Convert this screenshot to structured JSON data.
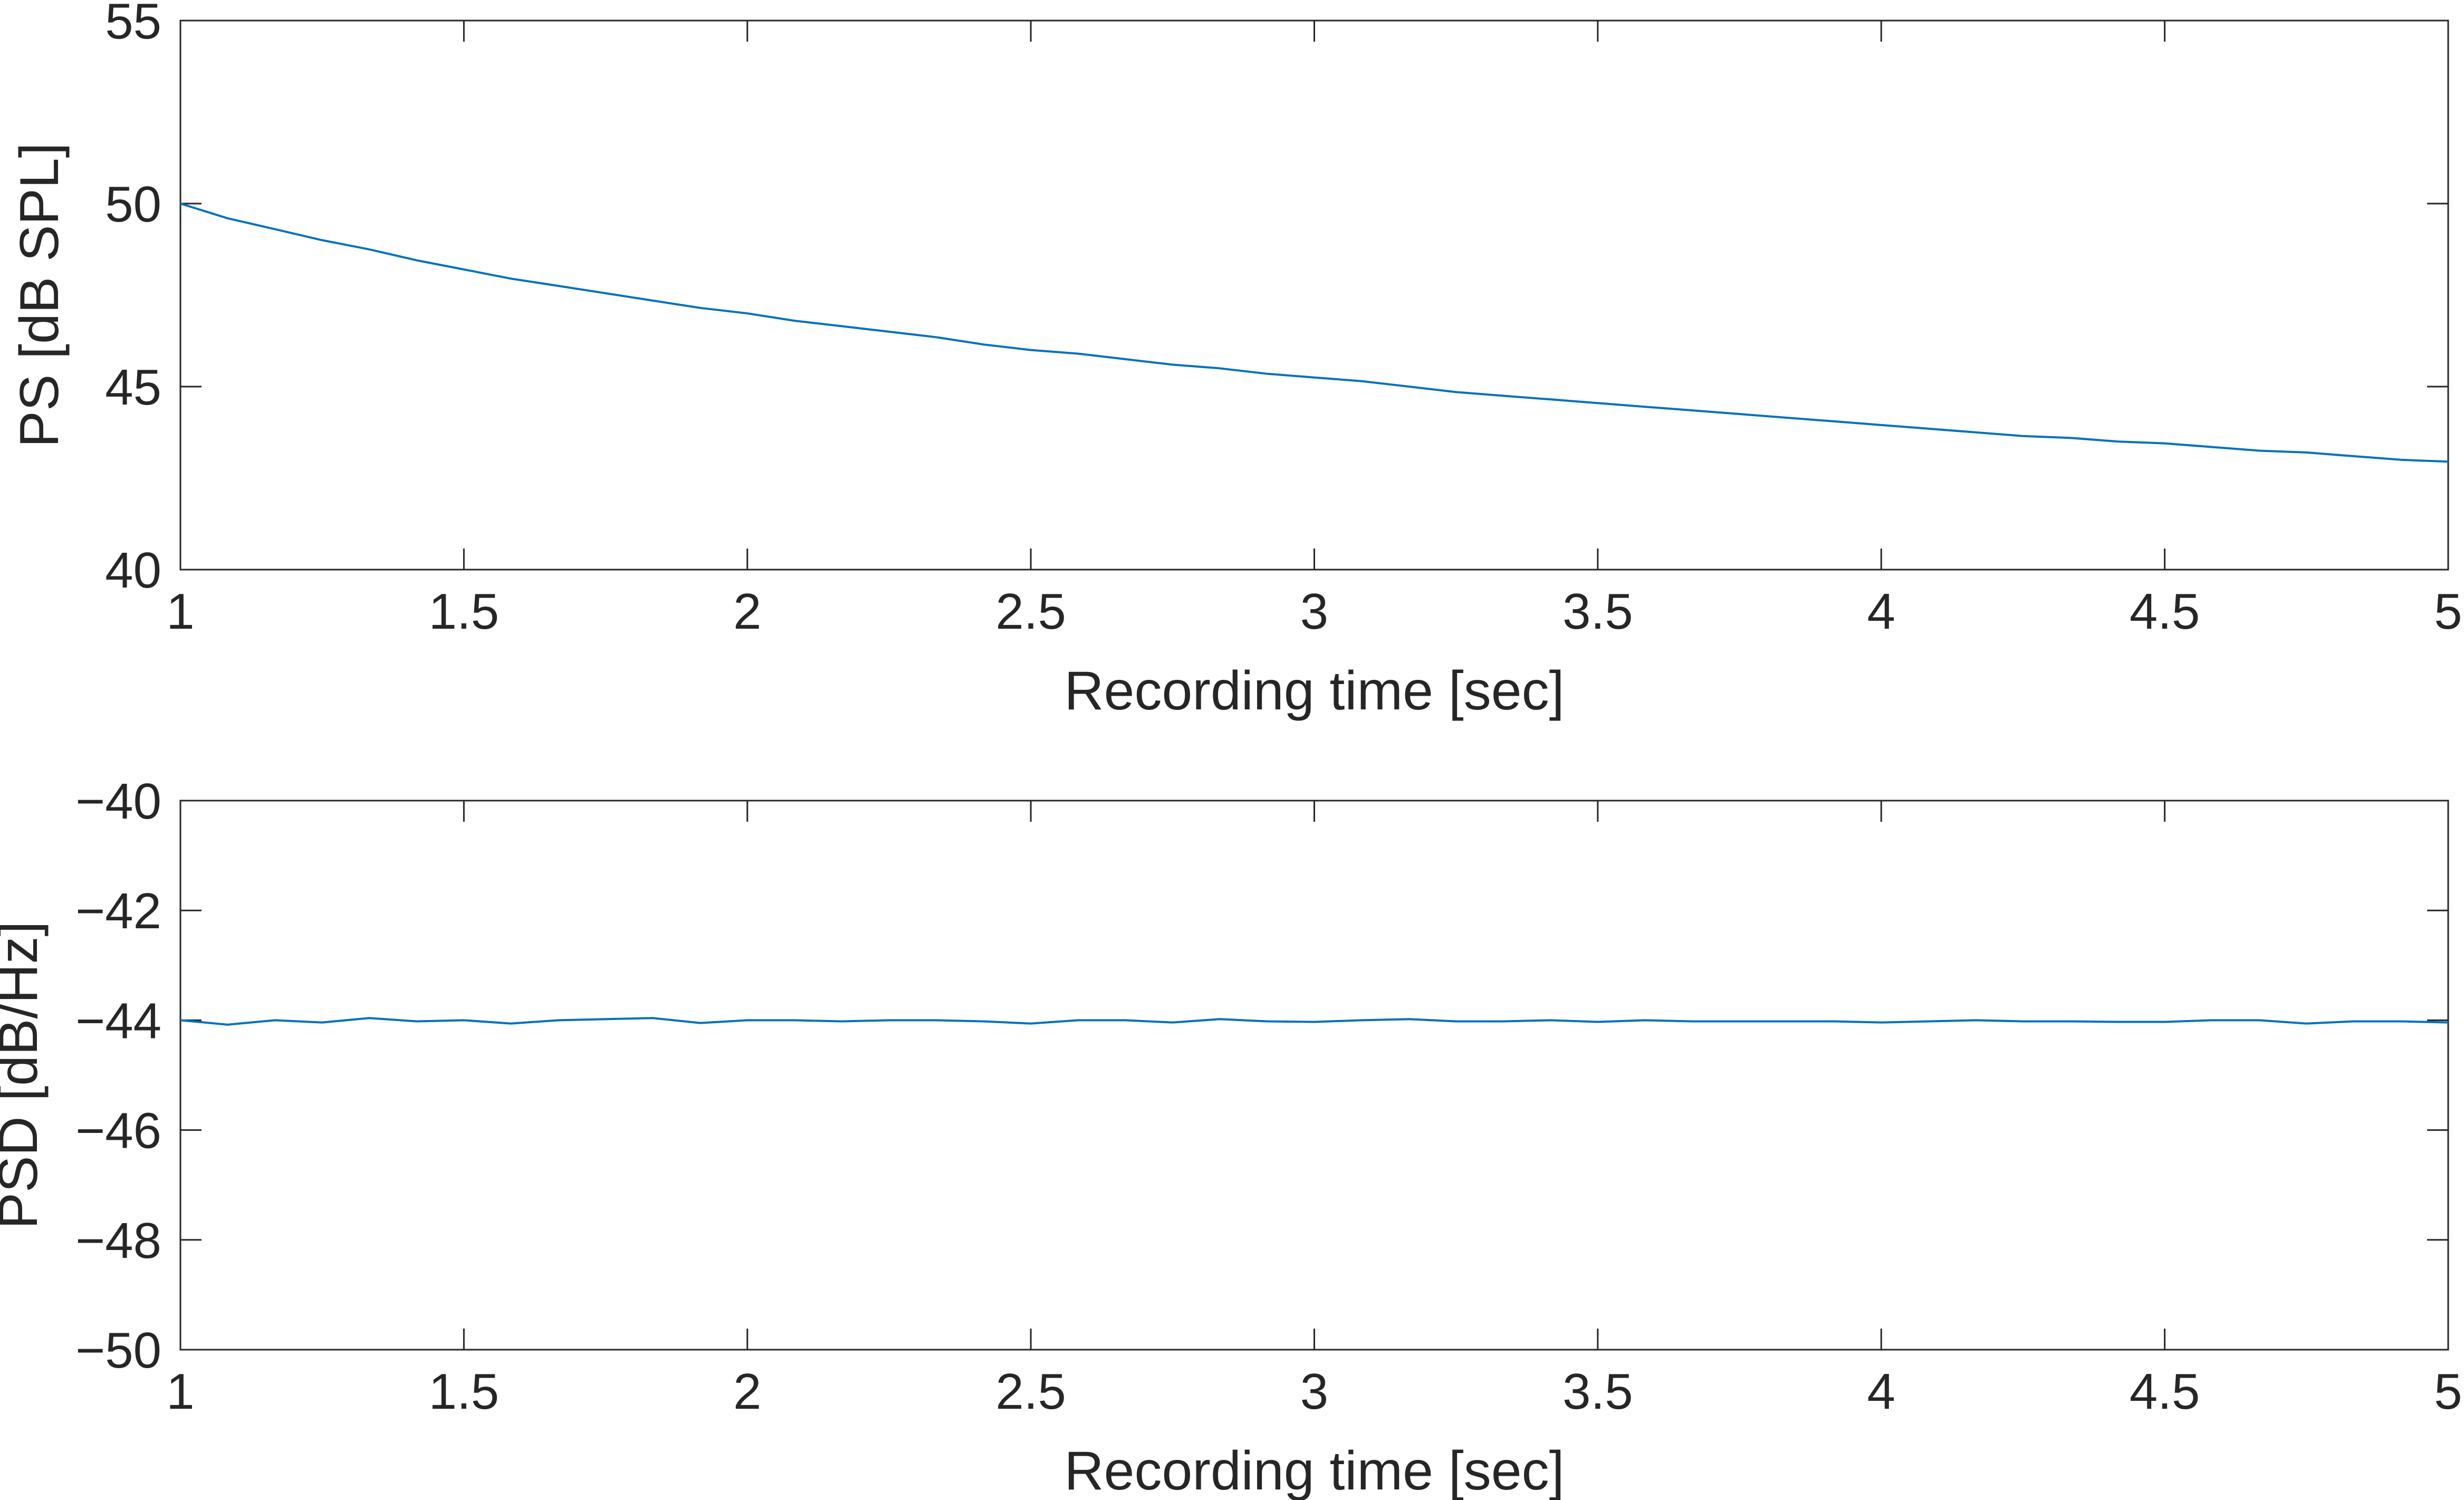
{
  "colors": {
    "series": "#0072BD",
    "axes": "#262626",
    "background": "#ffffff"
  },
  "chart_data": [
    {
      "type": "line",
      "xlabel": "Recording time [sec]",
      "ylabel": "PS [dB SPL]",
      "xlim": [
        1,
        5
      ],
      "ylim": [
        40,
        55
      ],
      "xticks": [
        1,
        1.5,
        2,
        2.5,
        3,
        3.5,
        4,
        4.5,
        5
      ],
      "xtick_labels": [
        "1",
        "1.5",
        "2",
        "2.5",
        "3",
        "3.5",
        "4",
        "4.5",
        "5"
      ],
      "yticks": [
        40,
        45,
        50,
        55
      ],
      "ytick_labels": [
        "40",
        "45",
        "50",
        "55"
      ],
      "grid": false,
      "legend": "none",
      "series": [
        {
          "x": [
            1,
            1.083,
            1.167,
            1.25,
            1.333,
            1.417,
            1.5,
            1.583,
            1.667,
            1.75,
            1.833,
            1.917,
            2,
            2.083,
            2.167,
            2.25,
            2.333,
            2.417,
            2.5,
            2.583,
            2.667,
            2.75,
            2.833,
            2.917,
            3,
            3.083,
            3.167,
            3.25,
            3.333,
            3.417,
            3.5,
            3.583,
            3.667,
            3.75,
            3.833,
            3.917,
            4,
            4.083,
            4.167,
            4.25,
            4.333,
            4.417,
            4.5,
            4.583,
            4.667,
            4.75,
            4.833,
            4.917,
            5
          ],
          "values": [
            50.0,
            49.6,
            49.3,
            49.0,
            48.75,
            48.45,
            48.2,
            47.95,
            47.75,
            47.55,
            47.35,
            47.15,
            47.0,
            46.8,
            46.65,
            46.5,
            46.35,
            46.15,
            46.0,
            45.9,
            45.75,
            45.6,
            45.5,
            45.35,
            45.25,
            45.15,
            45.0,
            44.85,
            44.75,
            44.65,
            44.55,
            44.45,
            44.35,
            44.25,
            44.15,
            44.05,
            43.95,
            43.85,
            43.75,
            43.65,
            43.6,
            43.5,
            43.45,
            43.35,
            43.25,
            43.2,
            43.1,
            43.0,
            42.95
          ]
        }
      ]
    },
    {
      "type": "line",
      "xlabel": "Recording time [sec]",
      "ylabel": "PSD [dB/Hz]",
      "xlim": [
        1,
        5
      ],
      "ylim": [
        -50,
        -40
      ],
      "xticks": [
        1,
        1.5,
        2,
        2.5,
        3,
        3.5,
        4,
        4.5,
        5
      ],
      "xtick_labels": [
        "1",
        "1.5",
        "2",
        "2.5",
        "3",
        "3.5",
        "4",
        "4.5",
        "5"
      ],
      "yticks": [
        -50,
        -48,
        -46,
        -44,
        -42,
        -40
      ],
      "ytick_labels": [
        "−50",
        "−48",
        "−46",
        "−44",
        "−42",
        "−40"
      ],
      "grid": false,
      "legend": "none",
      "series": [
        {
          "x": [
            1,
            1.083,
            1.167,
            1.25,
            1.333,
            1.417,
            1.5,
            1.583,
            1.667,
            1.75,
            1.833,
            1.917,
            2,
            2.083,
            2.167,
            2.25,
            2.333,
            2.417,
            2.5,
            2.583,
            2.667,
            2.75,
            2.833,
            2.917,
            3,
            3.083,
            3.167,
            3.25,
            3.333,
            3.417,
            3.5,
            3.583,
            3.667,
            3.75,
            3.833,
            3.917,
            4,
            4.083,
            4.167,
            4.25,
            4.333,
            4.417,
            4.5,
            4.583,
            4.667,
            4.75,
            4.833,
            4.917,
            5
          ],
          "values": [
            -44.0,
            -44.08,
            -44.0,
            -44.04,
            -43.96,
            -44.02,
            -44.0,
            -44.06,
            -44.0,
            -43.98,
            -43.96,
            -44.05,
            -44.0,
            -44.0,
            -44.02,
            -44.0,
            -44.0,
            -44.02,
            -44.06,
            -44.0,
            -44.0,
            -44.04,
            -43.98,
            -44.02,
            -44.03,
            -44.0,
            -43.98,
            -44.02,
            -44.02,
            -44.0,
            -44.03,
            -44.0,
            -44.02,
            -44.02,
            -44.02,
            -44.02,
            -44.04,
            -44.02,
            -44.0,
            -44.02,
            -44.02,
            -44.03,
            -44.03,
            -44.0,
            -44.0,
            -44.06,
            -44.02,
            -44.02,
            -44.04
          ]
        }
      ]
    }
  ]
}
